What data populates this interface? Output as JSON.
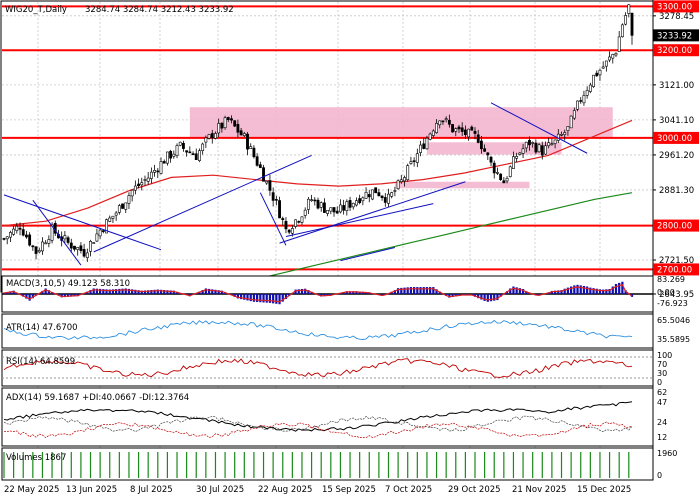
{
  "header": {
    "symbol": "WIG20_T,Daily",
    "ohlc": "3284.74 3284.74 3212.43 3233.92"
  },
  "colors": {
    "bull": "#ffffff",
    "bear": "#000000",
    "support_line": "#ff0000",
    "zone": "#f4b6cf",
    "trendline": "#1010c0",
    "ma_short": "#e02020",
    "ma_long": "#1a8a1a",
    "macd_hist": "#1010b0",
    "macd_signal": "#e02020",
    "atr": "#3090e0",
    "rsi": "#c00000",
    "volume": "#1a8a1a"
  },
  "main_axis": {
    "ticks": [
      "3278.45",
      "3121.00",
      "3041.10",
      "2961.20",
      "2881.30",
      "2721.50",
      "2643.95"
    ],
    "levels": [
      "3300.00",
      "3200.00",
      "3000.00",
      "2800.00",
      "2700.00"
    ],
    "current_price": "3233.92"
  },
  "date_labels": [
    "22 May 2025",
    "13 Jun 2025",
    "8 Jul 2025",
    "30 Jul 2025",
    "22 Aug 2025",
    "15 Sep 2025",
    "7 Oct 2025",
    "29 Oct 2025",
    "21 Nov 2025",
    "15 Dec 2025"
  ],
  "panels": {
    "macd": {
      "label": "MACD(3,10,5) 49.123 58.310",
      "ticks": [
        "83.269",
        "0.00",
        "-76.923"
      ]
    },
    "atr": {
      "label": "ATR(14) 47.6700",
      "ticks": [
        "65.5046",
        "35.5895"
      ]
    },
    "rsi": {
      "label": "RSI(14) 64.8599",
      "ticks": [
        "100",
        "70",
        "30",
        "0"
      ]
    },
    "adx": {
      "label": "ADX(14) 59.1687 +DI:40.0667 -DI:12.3764",
      "ticks": [
        "62",
        "47",
        "24",
        "12"
      ]
    },
    "volume": {
      "label": "Volumes 1867",
      "ticks": [
        "1960",
        "0"
      ]
    }
  },
  "chart_data": {
    "type": "candlestick",
    "symbol": "WIG20_T",
    "timeframe": "Daily",
    "last_bar": {
      "open": 3284.74,
      "high": 3284.74,
      "low": 3212.43,
      "close": 3233.92
    },
    "x_labels": [
      "22 May 2025",
      "13 Jun 2025",
      "8 Jul 2025",
      "30 Jul 2025",
      "22 Aug 2025",
      "15 Sep 2025",
      "7 Oct 2025",
      "29 Oct 2025",
      "21 Nov 2025",
      "15 Dec 2025"
    ],
    "ylim": [
      2643.95,
      3310
    ],
    "horizontal_levels": [
      3300,
      3200,
      3000,
      2800,
      2700
    ],
    "resistance_zones": [
      [
        3000,
        3070
      ],
      [
        2960,
        2990
      ],
      [
        2885,
        2900
      ]
    ],
    "close_path": [
      [
        0,
        2770
      ],
      [
        5,
        2800
      ],
      [
        10,
        2740
      ],
      [
        15,
        2790
      ],
      [
        20,
        2760
      ],
      [
        25,
        2740
      ],
      [
        30,
        2790
      ],
      [
        35,
        2830
      ],
      [
        40,
        2880
      ],
      [
        45,
        2910
      ],
      [
        50,
        2950
      ],
      [
        55,
        2980
      ],
      [
        60,
        2960
      ],
      [
        65,
        3010
      ],
      [
        70,
        3040
      ],
      [
        75,
        3000
      ],
      [
        80,
        2930
      ],
      [
        85,
        2850
      ],
      [
        88,
        2790
      ],
      [
        92,
        2820
      ],
      [
        96,
        2860
      ],
      [
        100,
        2840
      ],
      [
        104,
        2830
      ],
      [
        108,
        2850
      ],
      [
        112,
        2870
      ],
      [
        116,
        2880
      ],
      [
        120,
        2860
      ],
      [
        124,
        2900
      ],
      [
        128,
        2950
      ],
      [
        132,
        3000
      ],
      [
        136,
        3050
      ],
      [
        140,
        3020
      ],
      [
        144,
        3010
      ],
      [
        148,
        3000
      ],
      [
        152,
        2940
      ],
      [
        156,
        2900
      ],
      [
        160,
        2960
      ],
      [
        164,
        2990
      ],
      [
        168,
        2970
      ],
      [
        172,
        2990
      ],
      [
        176,
        3020
      ],
      [
        180,
        3090
      ],
      [
        184,
        3140
      ],
      [
        188,
        3170
      ],
      [
        191,
        3200
      ],
      [
        193,
        3260
      ],
      [
        195,
        3300
      ],
      [
        196,
        3233.92
      ]
    ],
    "moving_averages": [
      {
        "name": "MA short",
        "values": [
          2800,
          2810,
          2840,
          2880,
          2910,
          2915,
          2905,
          2895,
          2890,
          2895,
          2905,
          2920,
          2940,
          2960,
          3000,
          3040
        ]
      },
      {
        "name": "MA long",
        "values": [
          2680,
          2700,
          2720,
          2740,
          2760,
          2780,
          2800,
          2820,
          2840,
          2860,
          2875
        ]
      }
    ],
    "indicators": {
      "macd": {
        "macd": 49.123,
        "signal": 58.31,
        "range": [
          -76.923,
          83.269
        ]
      },
      "atr": {
        "value": 47.67,
        "range": [
          35.5895,
          65.5046
        ]
      },
      "rsi": {
        "value": 64.8599,
        "levels": [
          30,
          70
        ]
      },
      "adx": {
        "adx": 59.1687,
        "plus_di": 40.0667,
        "minus_di": 12.3764
      },
      "volume": {
        "last": 1867,
        "max": 1960
      }
    }
  }
}
